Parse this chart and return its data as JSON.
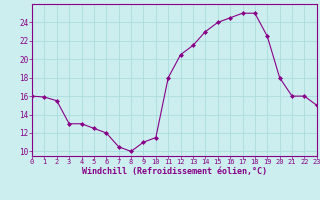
{
  "x": [
    0,
    1,
    2,
    3,
    4,
    5,
    6,
    7,
    8,
    9,
    10,
    11,
    12,
    13,
    14,
    15,
    16,
    17,
    18,
    19,
    20,
    21,
    22,
    23
  ],
  "y": [
    16,
    15.9,
    15.5,
    13,
    13,
    12.5,
    12,
    10.5,
    10,
    11,
    11.5,
    18,
    20.5,
    21.5,
    23,
    24,
    24.5,
    25,
    25,
    22.5,
    18,
    16,
    16,
    15
  ],
  "line_color": "#880088",
  "marker_color": "#880088",
  "bg_color": "#cceeee",
  "grid_color": "#aadddd",
  "xlabel": "Windchill (Refroidissement éolien,°C)",
  "xlabel_color": "#880088",
  "tick_color": "#880088",
  "spine_color": "#880088",
  "ylim": [
    9.5,
    26
  ],
  "yticks": [
    10,
    12,
    14,
    16,
    18,
    20,
    22,
    24
  ],
  "xticks": [
    0,
    1,
    2,
    3,
    4,
    5,
    6,
    7,
    8,
    9,
    10,
    11,
    12,
    13,
    14,
    15,
    16,
    17,
    18,
    19,
    20,
    21,
    22,
    23
  ],
  "xlim": [
    0,
    23
  ]
}
